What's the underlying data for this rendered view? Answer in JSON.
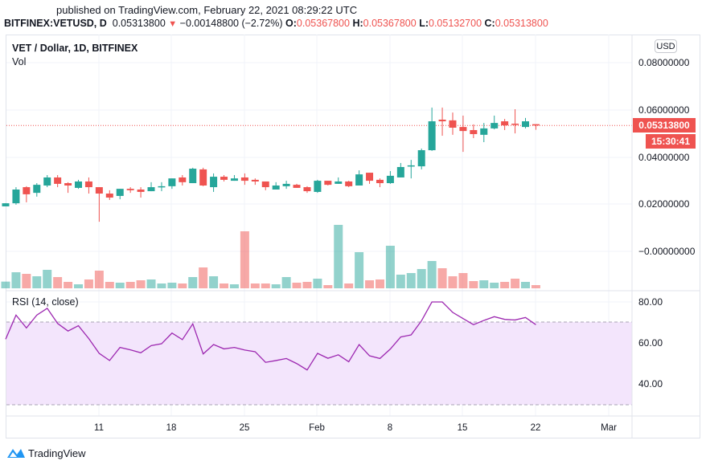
{
  "header": {
    "published": "published on TradingView.com, February 22, 2021 08:29:22 UTC",
    "symbol": "BITFINEX:VETUSD, D",
    "last": "0.05313800",
    "change": "−0.00148800 (−2.72%)",
    "o_label": "O:",
    "o": "0.05367800",
    "h_label": "H:",
    "h": "0.05367800",
    "l_label": "L:",
    "l": "0.05132700",
    "c_label": "C:",
    "c": "0.05313800",
    "direction_icon": "triangle-down-icon"
  },
  "legend": {
    "title": "VET / Dollar, 1D, BITFINEX",
    "vol": "Vol",
    "rsi": "RSI (14, close)"
  },
  "price_axis": {
    "currency_button": "USD",
    "ticks": [
      "0.08000000",
      "0.06000000",
      "0.04000000",
      "0.02000000",
      "−0.00000000"
    ],
    "last_price_label": "0.05313800",
    "countdown": "15:30:41"
  },
  "rsi_axis": {
    "ticks": [
      "80.00",
      "60.00",
      "40.00"
    ]
  },
  "time_axis": {
    "ticks": [
      "11",
      "18",
      "25",
      "Feb",
      "8",
      "15",
      "22",
      "Mar"
    ]
  },
  "branding": {
    "name": "TradingView"
  },
  "colors": {
    "up": "#26a69a",
    "down": "#ef5350",
    "rsi": "#9c27b0",
    "rsi_band": "#f3e5fc",
    "logo": "#2196f3"
  },
  "chart_data": {
    "type": "candlestick",
    "title": "VET / Dollar, 1D, BITFINEX",
    "ylim": [
      -0.01,
      0.085
    ],
    "last_price": 0.053138,
    "ohlc": [
      [
        0.019,
        0.0203,
        0.019,
        0.0203
      ],
      [
        0.0203,
        0.0271,
        0.0197,
        0.0261
      ],
      [
        0.0271,
        0.0275,
        0.0207,
        0.0241
      ],
      [
        0.0247,
        0.0288,
        0.0231,
        0.0281
      ],
      [
        0.0278,
        0.0322,
        0.0271,
        0.0312
      ],
      [
        0.0312,
        0.0322,
        0.0271,
        0.0285
      ],
      [
        0.0288,
        0.0292,
        0.0247,
        0.0278
      ],
      [
        0.0268,
        0.0302,
        0.0264,
        0.0295
      ],
      [
        0.0295,
        0.0312,
        0.0244,
        0.0271
      ],
      [
        0.0271,
        0.0271,
        0.0125,
        0.0244
      ],
      [
        0.0244,
        0.0258,
        0.0217,
        0.0227
      ],
      [
        0.0234,
        0.0264,
        0.022,
        0.0264
      ],
      [
        0.0264,
        0.0271,
        0.0247,
        0.0258
      ],
      [
        0.0261,
        0.0271,
        0.0227,
        0.0251
      ],
      [
        0.0254,
        0.0292,
        0.0254,
        0.0271
      ],
      [
        0.0271,
        0.0292,
        0.0254,
        0.0275
      ],
      [
        0.0275,
        0.0308,
        0.0264,
        0.0308
      ],
      [
        0.0312,
        0.0322,
        0.0278,
        0.0292
      ],
      [
        0.0288,
        0.0353,
        0.0288,
        0.0349
      ],
      [
        0.0346,
        0.0353,
        0.0275,
        0.0278
      ],
      [
        0.0271,
        0.0329,
        0.0251,
        0.0315
      ],
      [
        0.0315,
        0.0322,
        0.0295,
        0.0302
      ],
      [
        0.0298,
        0.0322,
        0.0298,
        0.0308
      ],
      [
        0.0312,
        0.0329,
        0.0281,
        0.0298
      ],
      [
        0.0302,
        0.0308,
        0.0281,
        0.0295
      ],
      [
        0.0295,
        0.0295,
        0.0258,
        0.0271
      ],
      [
        0.0261,
        0.0292,
        0.0261,
        0.0278
      ],
      [
        0.0275,
        0.0298,
        0.0264,
        0.0285
      ],
      [
        0.0281,
        0.0285,
        0.0268,
        0.0268
      ],
      [
        0.0271,
        0.0275,
        0.0247,
        0.0254
      ],
      [
        0.0251,
        0.0302,
        0.0247,
        0.0298
      ],
      [
        0.0298,
        0.0298,
        0.0278,
        0.0281
      ],
      [
        0.0285,
        0.0312,
        0.0285,
        0.0295
      ],
      [
        0.0295,
        0.0298,
        0.0271,
        0.0275
      ],
      [
        0.0278,
        0.0342,
        0.0278,
        0.0325
      ],
      [
        0.0332,
        0.0332,
        0.0285,
        0.0298
      ],
      [
        0.0302,
        0.0308,
        0.0271,
        0.0288
      ],
      [
        0.0288,
        0.0339,
        0.0285,
        0.0319
      ],
      [
        0.0312,
        0.0373,
        0.0312,
        0.0356
      ],
      [
        0.0359,
        0.0386,
        0.0308,
        0.0363
      ],
      [
        0.0359,
        0.0434,
        0.0346,
        0.0427
      ],
      [
        0.0427,
        0.0607,
        0.0424,
        0.0549
      ],
      [
        0.0556,
        0.0607,
        0.0488,
        0.0549
      ],
      [
        0.0553,
        0.0586,
        0.0492,
        0.0522
      ],
      [
        0.0525,
        0.0573,
        0.042,
        0.0508
      ],
      [
        0.0512,
        0.0536,
        0.0478,
        0.0495
      ],
      [
        0.0492,
        0.0542,
        0.0461,
        0.0519
      ],
      [
        0.0519,
        0.0573,
        0.0515,
        0.0542
      ],
      [
        0.0549,
        0.0559,
        0.0512,
        0.0532
      ],
      [
        0.0539,
        0.06,
        0.0498,
        0.0536
      ],
      [
        0.0525,
        0.0563,
        0.0519,
        0.0549
      ],
      [
        0.053678,
        0.053678,
        0.051327,
        0.053138
      ]
    ],
    "volume_relative": [
      25,
      60,
      54,
      45,
      69,
      42,
      24,
      15,
      33,
      66,
      24,
      21,
      24,
      30,
      33,
      18,
      21,
      18,
      42,
      78,
      45,
      18,
      15,
      213,
      18,
      18,
      15,
      42,
      21,
      24,
      36,
      12,
      237,
      18,
      135,
      30,
      33,
      159,
      51,
      57,
      72,
      102,
      75,
      45,
      57,
      27,
      30,
      21,
      24,
      36,
      24,
      12
    ],
    "rsi": {
      "label": "RSI (14, close)",
      "period": 14,
      "upper": 70,
      "lower": 30,
      "ylim": [
        20,
        85
      ],
      "values": [
        61.8,
        73.6,
        67.3,
        73.6,
        76.9,
        69.5,
        65.8,
        68.4,
        62.1,
        54.9,
        51.4,
        57.8,
        56.6,
        55.2,
        58.7,
        59.6,
        64.8,
        61.6,
        69.3,
        54.6,
        59.2,
        57.1,
        57.8,
        56.5,
        55.7,
        50.5,
        51.4,
        52.4,
        49.9,
        46.8,
        54.9,
        52.5,
        54.2,
        50.8,
        59.2,
        53.7,
        52.4,
        57.0,
        62.9,
        63.9,
        70.8,
        80.0,
        80.0,
        74.9,
        71.9,
        68.9,
        71.0,
        72.8,
        71.5,
        71.2,
        72.4,
        68.9
      ]
    },
    "x_tick_labels": [
      "11",
      "18",
      "25",
      "Feb",
      "8",
      "15",
      "22",
      "Mar"
    ]
  }
}
